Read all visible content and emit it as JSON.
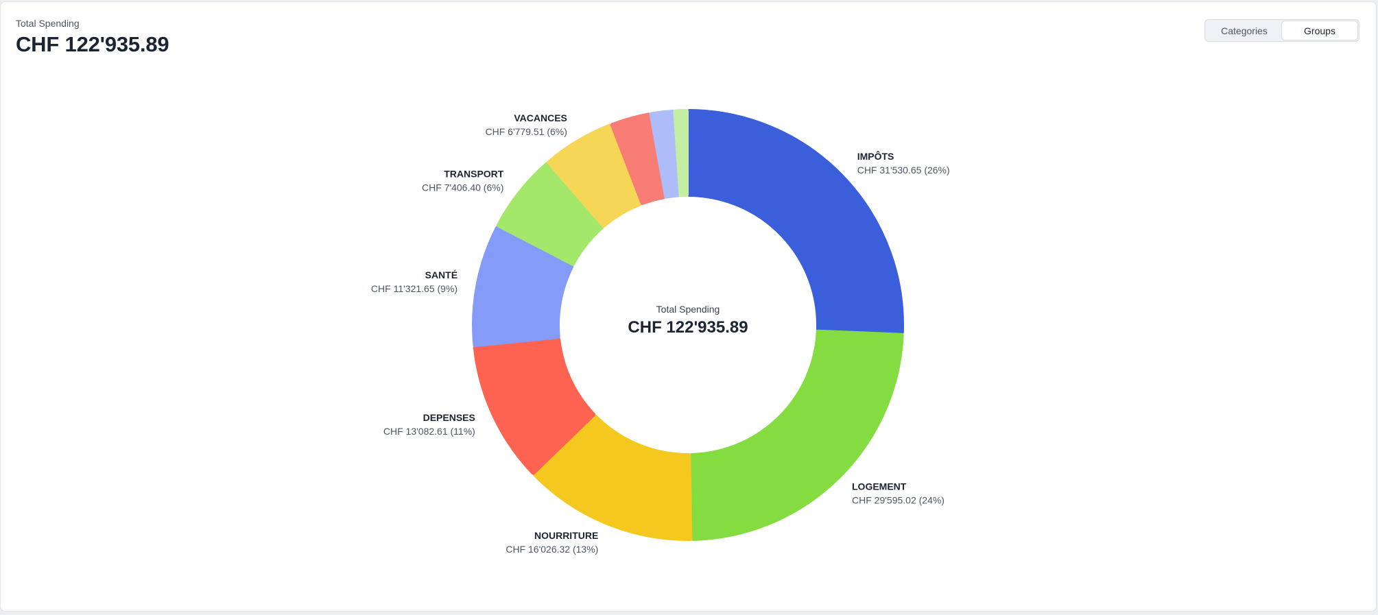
{
  "header": {
    "label": "Total Spending",
    "value": "CHF 122'935.89"
  },
  "toggle": {
    "options": [
      "Categories",
      "Groups"
    ],
    "active": "Groups"
  },
  "chart_data": {
    "type": "pie",
    "donut": true,
    "center_label": "Total Spending",
    "center_value": "CHF 122'935.89",
    "total": 122935.89,
    "currency": "CHF",
    "slices": [
      {
        "name": "IMPÔTS",
        "value": 31530.65,
        "display": "CHF 31'530.65 (26%)",
        "color": "#3b5fdb"
      },
      {
        "name": "LOGEMENT",
        "value": 29595.02,
        "display": "CHF 29'595.02 (24%)",
        "color": "#84dc41"
      },
      {
        "name": "NOURRITURE",
        "value": 16026.32,
        "display": "CHF 16'026.32 (13%)",
        "color": "#f4c81e"
      },
      {
        "name": "DEPENSES",
        "value": 13082.61,
        "display": "CHF 13'082.61 (11%)",
        "color": "#fd6350"
      },
      {
        "name": "SANTÉ",
        "value": 11321.65,
        "display": "CHF 11'321.65 (9%)",
        "color": "#849cf8"
      },
      {
        "name": "TRANSPORT",
        "value": 7406.4,
        "display": "CHF 7'406.40 (6%)",
        "color": "#a4e86b"
      },
      {
        "name": "VACANCES",
        "value": 6779.51,
        "display": "CHF 6'779.51 (6%)",
        "color": "#f5d657"
      },
      {
        "name": "",
        "value": 3700,
        "display": "",
        "color": "#f77d74"
      },
      {
        "name": "",
        "value": 2200,
        "display": "",
        "color": "#aebdf9"
      },
      {
        "name": "",
        "value": 1293.73,
        "display": "",
        "color": "#c4eea3"
      }
    ]
  }
}
